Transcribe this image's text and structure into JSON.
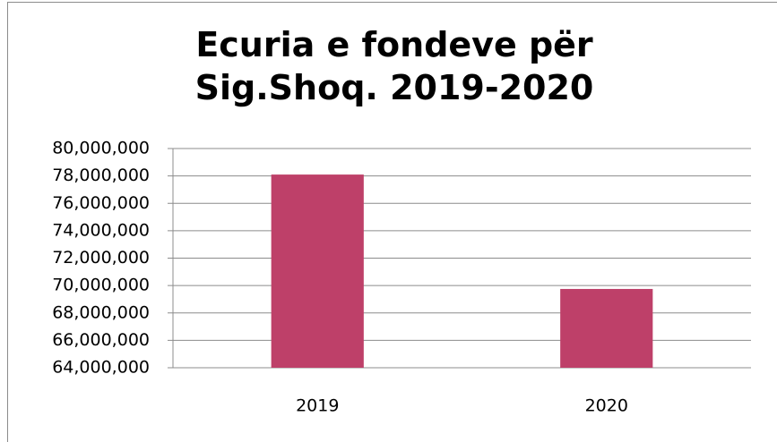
{
  "chart_data": {
    "type": "bar",
    "title": "Ecuria e fondeve për Sig.Shoq. 2019-2020",
    "categories": [
      "2019",
      "2020"
    ],
    "values": [
      78100000,
      69750000
    ],
    "color": "#be4069",
    "ylim": [
      64000000,
      80000000
    ],
    "yticks": [
      {
        "value": 64000000,
        "label": "64,000,000"
      },
      {
        "value": 66000000,
        "label": "66,000,000"
      },
      {
        "value": 68000000,
        "label": "68,000,000"
      },
      {
        "value": 70000000,
        "label": "70,000,000"
      },
      {
        "value": 72000000,
        "label": "72,000,000"
      },
      {
        "value": 74000000,
        "label": "74,000,000"
      },
      {
        "value": 76000000,
        "label": "76,000,000"
      },
      {
        "value": 78000000,
        "label": "78,000,000"
      },
      {
        "value": 80000000,
        "label": "80,000,000"
      }
    ],
    "grid": true
  }
}
